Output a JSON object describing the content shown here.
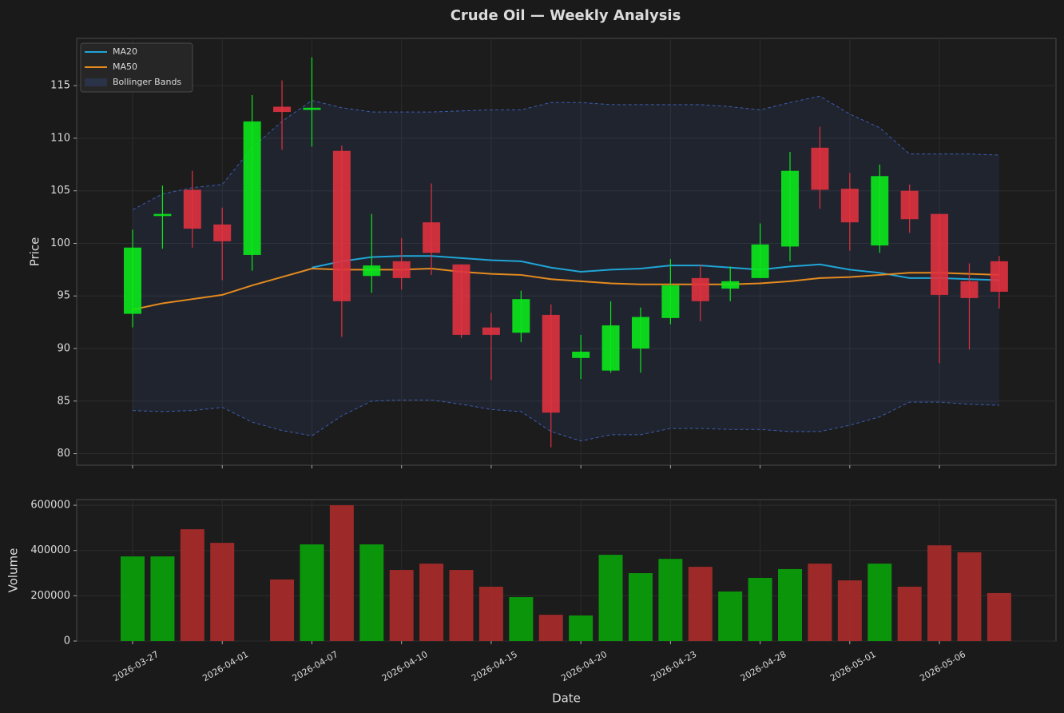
{
  "chart_data": [
    {
      "type": "candlestick",
      "title": "Crude Oil — Weekly Analysis",
      "ylabel": "Price",
      "ylim": [
        78.9,
        119.5
      ],
      "yticks": [
        80,
        85,
        90,
        95,
        100,
        105,
        110,
        115
      ],
      "grid": true,
      "legend": "upper left",
      "up_color": "#0be81b",
      "down_color": "#e0323f",
      "open": [
        93.3,
        102.6,
        105.1,
        101.8,
        98.9,
        113.0,
        112.7,
        108.8,
        96.9,
        98.3,
        102.0,
        98.0,
        92.0,
        91.5,
        93.2,
        89.1,
        87.9,
        90.0,
        92.9,
        96.7,
        95.7,
        96.7,
        99.7,
        109.1,
        105.2,
        99.8,
        105.0,
        102.8,
        96.4,
        98.3
      ],
      "high": [
        101.3,
        105.5,
        106.9,
        103.4,
        114.1,
        115.5,
        117.7,
        109.3,
        102.8,
        100.5,
        105.7,
        98.0,
        93.4,
        95.5,
        94.2,
        91.3,
        94.5,
        93.9,
        98.5,
        98.0,
        97.8,
        101.9,
        108.7,
        111.1,
        106.7,
        107.5,
        105.6,
        102.8,
        98.1,
        98.8
      ],
      "low": [
        92.0,
        99.5,
        99.6,
        96.5,
        97.4,
        108.9,
        109.2,
        91.1,
        95.3,
        95.6,
        97.0,
        91.0,
        87.0,
        90.6,
        80.6,
        87.1,
        87.7,
        87.7,
        92.3,
        92.6,
        94.5,
        96.7,
        98.3,
        103.3,
        99.3,
        99.1,
        101.0,
        88.6,
        89.9,
        93.8
      ],
      "close": [
        99.6,
        102.8,
        101.4,
        100.2,
        111.6,
        112.5,
        112.9,
        94.5,
        97.9,
        96.7,
        99.1,
        91.3,
        91.3,
        94.7,
        83.9,
        89.7,
        92.2,
        93.0,
        96.0,
        94.5,
        96.4,
        99.9,
        106.9,
        105.1,
        102.0,
        106.4,
        102.3,
        95.1,
        94.8,
        95.4
      ],
      "series": [
        {
          "name": "MA20",
          "color": "#1fa5d6",
          "values": [
            null,
            null,
            null,
            null,
            null,
            null,
            97.7,
            98.3,
            98.7,
            98.8,
            98.8,
            98.6,
            98.4,
            98.3,
            97.7,
            97.3,
            97.5,
            97.6,
            97.9,
            97.9,
            97.7,
            97.5,
            97.8,
            98.0,
            97.5,
            97.2,
            96.7,
            96.7,
            96.6,
            96.5
          ]
        },
        {
          "name": "MA50",
          "color": "#e58b1e",
          "values": [
            93.7,
            94.3,
            94.7,
            95.1,
            96.0,
            96.8,
            97.6,
            97.5,
            97.5,
            97.5,
            97.6,
            97.3,
            97.1,
            97.0,
            96.6,
            96.4,
            96.2,
            96.1,
            96.1,
            96.1,
            96.1,
            96.2,
            96.4,
            96.7,
            96.8,
            97.0,
            97.2,
            97.2,
            97.1,
            97.0
          ]
        }
      ],
      "bands": {
        "name": "Bollinger Bands",
        "color": "#3a5cb0",
        "upper": [
          103.2,
          104.7,
          105.3,
          105.6,
          109.1,
          111.6,
          113.6,
          112.9,
          112.5,
          112.5,
          112.5,
          112.6,
          112.7,
          112.7,
          113.4,
          113.4,
          113.2,
          113.2,
          113.2,
          113.2,
          113.0,
          112.7,
          113.4,
          114.0,
          112.3,
          111.0,
          108.5,
          108.5,
          108.5,
          108.4
        ],
        "lower": [
          84.1,
          84.0,
          84.1,
          84.4,
          83.0,
          82.2,
          81.7,
          83.6,
          85.0,
          85.1,
          85.1,
          84.7,
          84.2,
          84.0,
          82.1,
          81.2,
          81.8,
          81.8,
          82.4,
          82.4,
          82.3,
          82.3,
          82.1,
          82.1,
          82.7,
          83.5,
          84.9,
          84.9,
          84.7,
          84.6
        ]
      }
    },
    {
      "type": "bar",
      "ylabel": "Volume",
      "xlabel": "Date",
      "ylim": [
        0,
        625000
      ],
      "yticks": [
        0,
        200000,
        400000,
        600000
      ],
      "grid": true,
      "up_color": "#0a9c0a",
      "down_color": "#a52a2a",
      "categories": [
        "2026-03-27",
        null,
        null,
        "2026-04-01",
        null,
        null,
        "2026-04-07",
        null,
        null,
        "2026-04-10",
        null,
        null,
        "2026-04-15",
        null,
        null,
        "2026-04-20",
        null,
        null,
        "2026-04-23",
        null,
        null,
        "2026-04-28",
        null,
        null,
        "2026-05-01",
        null,
        null,
        "2026-05-06",
        null,
        null
      ],
      "values": [
        374000,
        374000,
        494000,
        434000,
        0,
        272000,
        427000,
        600000,
        427000,
        314000,
        342000,
        314000,
        240000,
        194000,
        116000,
        113000,
        381000,
        300000,
        363000,
        328000,
        219000,
        279000,
        318000,
        342000,
        268000,
        342000,
        240000,
        423000,
        392000,
        212000
      ]
    }
  ]
}
